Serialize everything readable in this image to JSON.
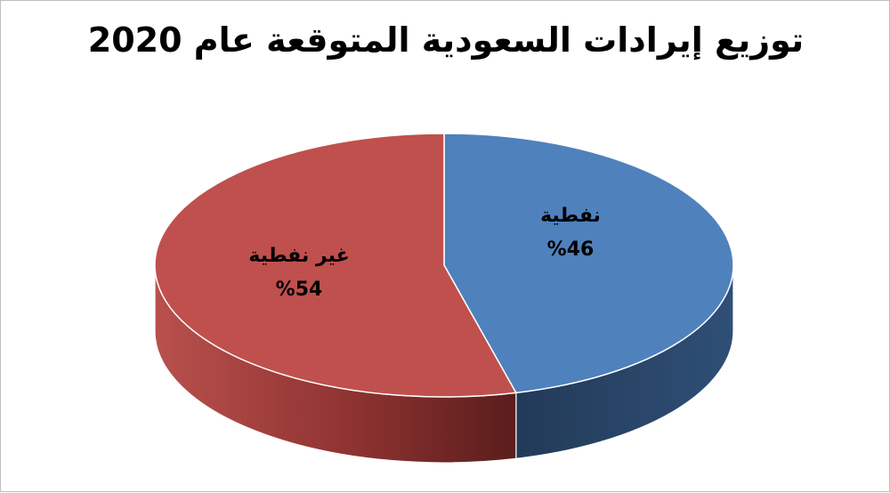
{
  "chart_data": {
    "type": "pie",
    "title": "توزيع إيرادات السعودية المتوقعة عام 2020",
    "slices": [
      {
        "name": "نفطية",
        "value": 46,
        "label": "%46",
        "color": "#4f81bd",
        "side_color": "#2b4a6f"
      },
      {
        "name": "غير نفطية",
        "value": 54,
        "label": "%54",
        "color": "#c0504d",
        "side_color": "#7a2a28"
      }
    ],
    "style": "3d"
  }
}
